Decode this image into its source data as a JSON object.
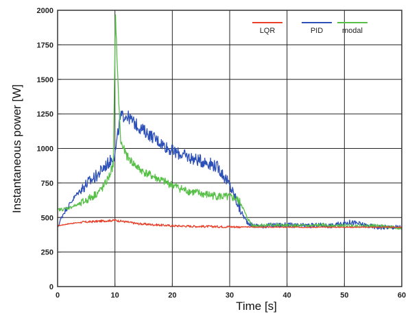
{
  "chart_data": {
    "type": "line",
    "title": "",
    "xlabel": "Time [s]",
    "ylabel": "Instantaneous power [W]",
    "xlim": [
      0,
      60
    ],
    "ylim": [
      0,
      2000
    ],
    "xticks": [
      0,
      10,
      20,
      30,
      40,
      50,
      60
    ],
    "yticks": [
      0,
      250,
      500,
      750,
      1000,
      1250,
      1500,
      1750,
      2000
    ],
    "grid": true,
    "legend_position": "top-right",
    "series": [
      {
        "name": "LQR",
        "color": "#e8402a",
        "x": [
          0,
          2,
          4,
          6,
          8,
          10,
          12,
          14,
          16,
          18,
          20,
          22,
          24,
          26,
          28,
          30,
          32,
          34,
          36,
          38,
          40,
          42,
          44,
          46,
          48,
          50,
          52,
          54,
          56,
          58,
          60
        ],
        "y": [
          440,
          455,
          465,
          470,
          475,
          480,
          468,
          455,
          450,
          445,
          440,
          438,
          436,
          435,
          434,
          433,
          432,
          431,
          430,
          430,
          430,
          430,
          430,
          430,
          430,
          430,
          430,
          430,
          430,
          430,
          430
        ]
      },
      {
        "name": "PID",
        "color": "#2c4fb8",
        "x": [
          0,
          1,
          2,
          3,
          4,
          5,
          6,
          7,
          8,
          9,
          10,
          10.5,
          11,
          12,
          13,
          14,
          15,
          16,
          17,
          18,
          19,
          20,
          22,
          24,
          26,
          27,
          28,
          29,
          30,
          31,
          32,
          33,
          34,
          36,
          38,
          40,
          42,
          44,
          46,
          48,
          50,
          51,
          52,
          53,
          54,
          56,
          58,
          60
        ],
        "y": [
          430,
          530,
          590,
          650,
          700,
          740,
          775,
          810,
          860,
          900,
          960,
          1100,
          1230,
          1240,
          1200,
          1160,
          1130,
          1100,
          1070,
          1040,
          1010,
          980,
          950,
          920,
          900,
          885,
          860,
          800,
          730,
          640,
          540,
          470,
          440,
          440,
          445,
          445,
          440,
          440,
          445,
          440,
          460,
          465,
          460,
          450,
          440,
          430,
          430,
          430
        ]
      },
      {
        "name": "modal",
        "color": "#56c046",
        "x": [
          0,
          1,
          2,
          3,
          4,
          5,
          6,
          7,
          8,
          9,
          9.7,
          10.1,
          10.5,
          11,
          12,
          13,
          14,
          15,
          16,
          17,
          18,
          20,
          22,
          24,
          26,
          27,
          28,
          29,
          30,
          31,
          32,
          33,
          34,
          36,
          38,
          40,
          42,
          44,
          46,
          48,
          50,
          52,
          54,
          56,
          58,
          60
        ],
        "y": [
          555,
          560,
          570,
          585,
          600,
          625,
          650,
          680,
          720,
          800,
          880,
          1960,
          1500,
          1050,
          950,
          900,
          860,
          830,
          810,
          790,
          770,
          735,
          700,
          680,
          665,
          660,
          655,
          650,
          645,
          640,
          600,
          500,
          440,
          445,
          445,
          440,
          440,
          440,
          445,
          440,
          440,
          440,
          440,
          440,
          430,
          420
        ]
      }
    ]
  }
}
